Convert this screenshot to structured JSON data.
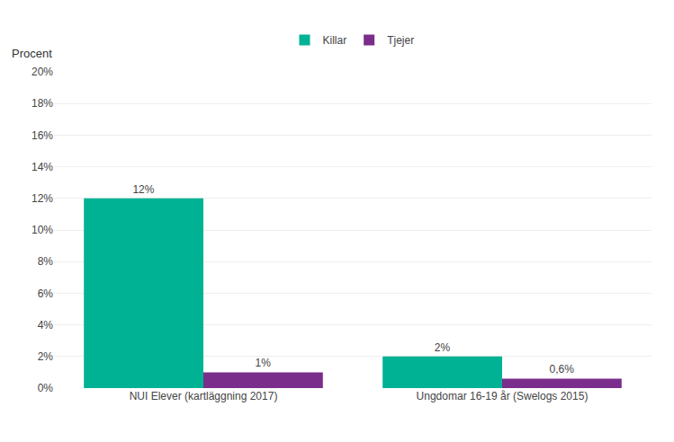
{
  "chart_data": {
    "type": "bar",
    "ylabel": "Procent",
    "categories": [
      "NUI Elever (kartläggning 2017)",
      "Ungdomar 16-19 år (Swelogs 2015)"
    ],
    "series": [
      {
        "name": "Killar",
        "color": "#00B294",
        "values": [
          12,
          2
        ],
        "value_labels": [
          "12%",
          "2%"
        ]
      },
      {
        "name": "Tjejer",
        "color": "#7B2D8B",
        "values": [
          1,
          0.6
        ],
        "value_labels": [
          "1%",
          "0,6%"
        ]
      }
    ],
    "ylim": [
      0,
      20
    ],
    "yticks": [
      {
        "value": 0,
        "label": "0%"
      },
      {
        "value": 2,
        "label": "2%"
      },
      {
        "value": 4,
        "label": "4%"
      },
      {
        "value": 6,
        "label": "6%"
      },
      {
        "value": 8,
        "label": "8%"
      },
      {
        "value": 10,
        "label": "10%"
      },
      {
        "value": 12,
        "label": "12%"
      },
      {
        "value": 14,
        "label": "14%"
      },
      {
        "value": 16,
        "label": "16%"
      },
      {
        "value": 18,
        "label": "18%"
      },
      {
        "value": 20,
        "label": "20%"
      }
    ],
    "grid": true,
    "legend": "top",
    "data_labels": true
  }
}
